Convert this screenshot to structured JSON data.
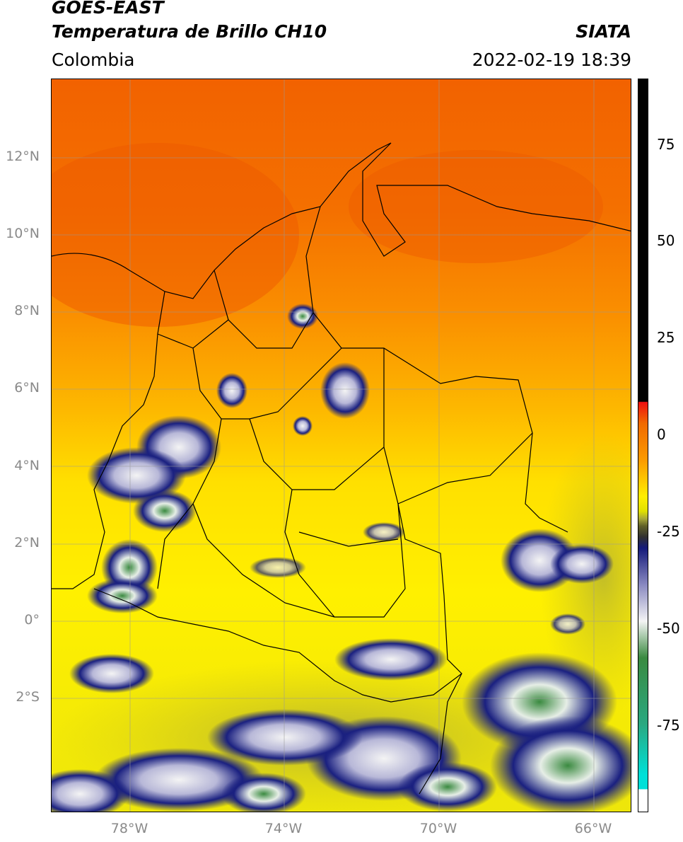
{
  "header": {
    "satellite": "GOES-EAST",
    "product": "Temperatura de Brillo CH10",
    "region": "Colombia",
    "agency": "SIATA",
    "datetime": "2022-02-19 18:39"
  },
  "map": {
    "lat_ticks": [
      "12°N",
      "10°N",
      "8°N",
      "6°N",
      "4°N",
      "2°N",
      "0°",
      "2°S"
    ],
    "lon_ticks": [
      "78°W",
      "74°W",
      "70°W",
      "66°W"
    ],
    "lon_range": [
      -80,
      -65
    ],
    "lat_range": [
      -5,
      14
    ]
  },
  "colorbar": {
    "range": [
      -95,
      90
    ],
    "ticks": [
      "75",
      "50",
      "25",
      "0",
      "-25",
      "-50",
      "-75"
    ],
    "tick_values": [
      75,
      50,
      25,
      0,
      -25,
      -50,
      -75
    ]
  },
  "colors": {
    "warm": "#f06a00",
    "orange": "#fb9a00",
    "yellow": "#ffee00",
    "olive": "#c8c020",
    "navy": "#141a7a",
    "white": "#f4f4f4",
    "green": "#3a8a40",
    "cyan": "#00e0d8",
    "red": "#ee1010",
    "black": "#000000"
  }
}
